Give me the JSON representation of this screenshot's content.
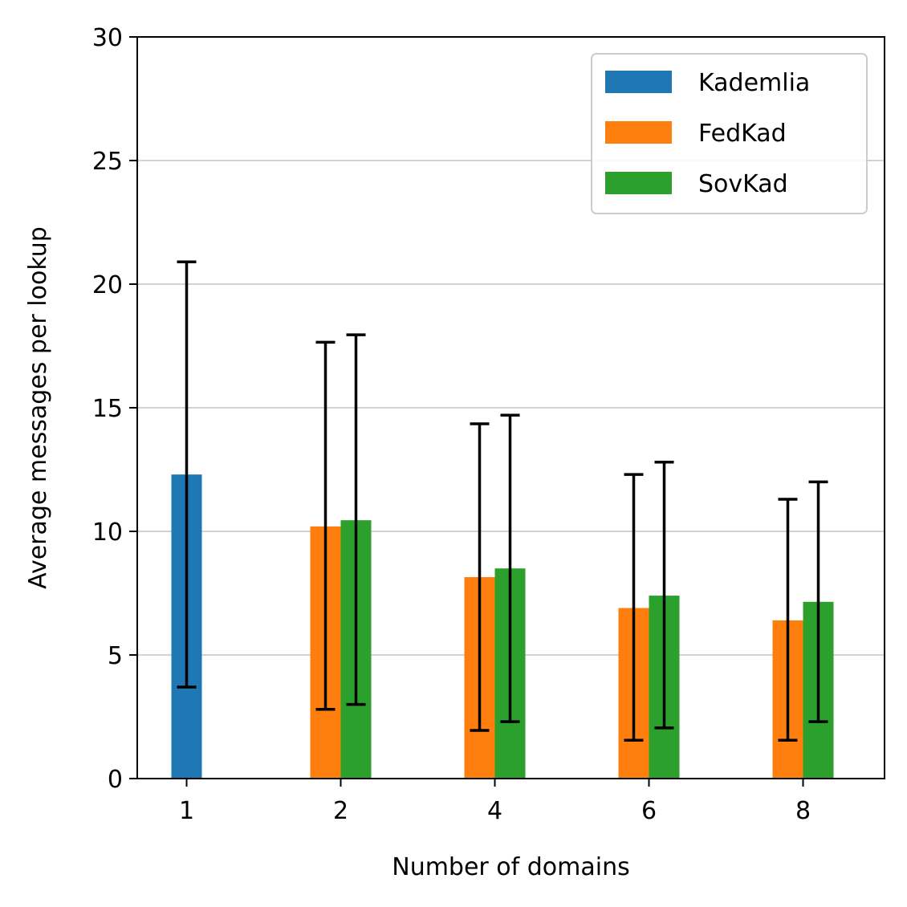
{
  "chart_data": {
    "type": "bar",
    "title": "",
    "xlabel": "Number of domains",
    "ylabel": "Average messages per lookup",
    "categories": [
      "1",
      "2",
      "4",
      "6",
      "8"
    ],
    "ylim": [
      0,
      30
    ],
    "yticks": [
      "0",
      "5",
      "10",
      "15",
      "20",
      "25",
      "30"
    ],
    "grid": "horizontal",
    "legend_position": "top-right",
    "series": [
      {
        "name": "Kademlia",
        "color": "#1f77b4",
        "values": [
          12.3,
          null,
          null,
          null,
          null
        ],
        "err_low": [
          3.7,
          null,
          null,
          null,
          null
        ],
        "err_high": [
          20.9,
          null,
          null,
          null,
          null
        ]
      },
      {
        "name": "FedKad",
        "color": "#ff7f0e",
        "values": [
          null,
          10.2,
          8.15,
          6.9,
          6.4
        ],
        "err_low": [
          null,
          2.8,
          1.95,
          1.55,
          1.55
        ],
        "err_high": [
          null,
          17.65,
          14.35,
          12.3,
          11.3
        ]
      },
      {
        "name": "SovKad",
        "color": "#2ca02c",
        "values": [
          null,
          10.45,
          8.5,
          7.4,
          7.15
        ],
        "err_low": [
          null,
          3.0,
          2.3,
          2.05,
          2.3
        ],
        "err_high": [
          null,
          17.95,
          14.7,
          12.8,
          12.0
        ]
      }
    ]
  }
}
